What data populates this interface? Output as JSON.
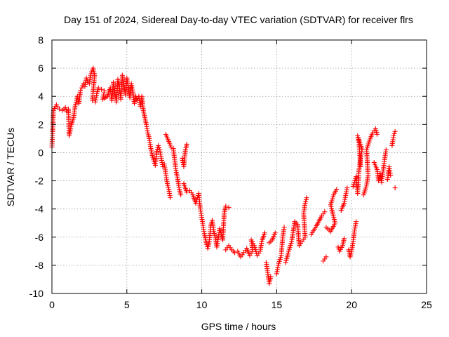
{
  "chart_data": {
    "type": "scatter",
    "title": "Day 151 of 2024, Sidereal Day-to-day VTEC variation (SDTVAR) for receiver flrs",
    "xlabel": "GPS time / hours",
    "ylabel": "SDTVAR / TECUs",
    "xlim": [
      0,
      25
    ],
    "ylim": [
      -10,
      8
    ],
    "xticks": [
      0,
      5,
      10,
      15,
      20,
      25
    ],
    "yticks": [
      -10,
      -8,
      -6,
      -4,
      -2,
      0,
      2,
      4,
      6,
      8
    ],
    "grid": true,
    "marker": "plus",
    "color": "#ff0000",
    "series": [
      {
        "points": [
          [
            0.0,
            0.4
          ],
          [
            0.05,
            1.5
          ],
          [
            0.1,
            3.0
          ],
          [
            0.3,
            3.4
          ],
          [
            0.5,
            3.1
          ],
          [
            0.7,
            3.0
          ],
          [
            0.9,
            3.2
          ],
          [
            1.0,
            2.9
          ],
          [
            1.1,
            3.1
          ],
          [
            1.15,
            1.2
          ],
          [
            1.3,
            2.0
          ],
          [
            1.45,
            2.5
          ],
          [
            1.55,
            3.3
          ],
          [
            1.7,
            4.0
          ],
          [
            1.8,
            3.5
          ],
          [
            1.9,
            4.4
          ],
          [
            2.0,
            4.6
          ],
          [
            2.1,
            4.9
          ],
          [
            2.2,
            4.7
          ],
          [
            2.3,
            5.3
          ],
          [
            2.4,
            5.0
          ],
          [
            2.5,
            4.9
          ],
          [
            2.6,
            5.6
          ],
          [
            2.75,
            6.0
          ],
          [
            2.85,
            5.5
          ],
          [
            2.7,
            3.7
          ],
          [
            2.9,
            3.6
          ],
          [
            3.0,
            4.2
          ],
          [
            3.1,
            4.6
          ],
          [
            3.3,
            4.5
          ],
          [
            3.5,
            4.4
          ],
          [
            3.4,
            3.8
          ],
          [
            3.7,
            4.0
          ],
          [
            3.9,
            4.6
          ],
          [
            4.0,
            3.7
          ],
          [
            4.1,
            5.0
          ],
          [
            4.2,
            4.3
          ],
          [
            4.3,
            3.6
          ],
          [
            4.4,
            5.2
          ],
          [
            4.5,
            4.7
          ],
          [
            4.6,
            3.8
          ],
          [
            4.7,
            5.5
          ],
          [
            4.8,
            4.8
          ],
          [
            4.9,
            4.1
          ],
          [
            5.0,
            5.3
          ],
          [
            5.1,
            4.6
          ],
          [
            5.2,
            3.9
          ],
          [
            5.3,
            4.9
          ],
          [
            5.4,
            4.3
          ],
          [
            5.5,
            3.5
          ],
          [
            5.6,
            4.0
          ],
          [
            5.7,
            3.7
          ],
          [
            5.8,
            4.0
          ],
          [
            5.9,
            3.3
          ],
          [
            6.0,
            4.0
          ],
          [
            6.1,
            3.0
          ],
          [
            6.2,
            2.5
          ],
          [
            6.3,
            2.0
          ],
          [
            6.4,
            1.4
          ],
          [
            6.5,
            1.0
          ],
          [
            6.6,
            0.3
          ],
          [
            6.7,
            -0.2
          ],
          [
            6.8,
            -0.6
          ],
          [
            6.9,
            -0.9
          ],
          [
            7.0,
            0.1
          ],
          [
            7.1,
            0.5
          ],
          [
            7.2,
            0.2
          ],
          [
            7.3,
            -0.4
          ],
          [
            7.4,
            -1.0
          ],
          [
            7.5,
            -0.8
          ],
          [
            7.6,
            -1.5
          ],
          [
            7.7,
            -2.2
          ],
          [
            7.8,
            -2.6
          ],
          [
            7.9,
            -3.2
          ],
          [
            7.6,
            1.3
          ],
          [
            7.8,
            0.8
          ],
          [
            7.95,
            0.4
          ],
          [
            8.1,
            0.3
          ],
          [
            8.2,
            -0.6
          ],
          [
            8.3,
            -1.4
          ],
          [
            8.4,
            -1.9
          ],
          [
            8.5,
            -2.6
          ],
          [
            8.6,
            -3.0
          ],
          [
            8.7,
            -0.4
          ],
          [
            8.8,
            -1.0
          ],
          [
            8.9,
            0.1
          ],
          [
            9.0,
            0.6
          ],
          [
            8.8,
            -2.2
          ],
          [
            9.0,
            -2.8
          ],
          [
            9.2,
            -2.7
          ],
          [
            9.4,
            -3.0
          ],
          [
            9.6,
            -3.6
          ],
          [
            9.8,
            -2.9
          ],
          [
            9.9,
            -4.0
          ],
          [
            10.0,
            -4.6
          ],
          [
            10.1,
            -5.3
          ],
          [
            10.2,
            -5.9
          ],
          [
            10.3,
            -6.4
          ],
          [
            10.4,
            -6.8
          ],
          [
            10.5,
            -6.3
          ],
          [
            10.6,
            -5.2
          ],
          [
            10.7,
            -4.8
          ],
          [
            10.8,
            -5.6
          ],
          [
            10.9,
            -6.0
          ],
          [
            11.0,
            -6.7
          ],
          [
            11.2,
            -5.4
          ],
          [
            11.4,
            -6.2
          ],
          [
            11.5,
            -4.3
          ],
          [
            11.6,
            -3.8
          ],
          [
            11.8,
            -3.9
          ],
          [
            11.6,
            -6.9
          ],
          [
            11.8,
            -6.6
          ],
          [
            12.0,
            -6.9
          ],
          [
            12.2,
            -7.1
          ],
          [
            12.4,
            -7.0
          ],
          [
            12.6,
            -7.4
          ],
          [
            12.8,
            -7.1
          ],
          [
            13.0,
            -6.8
          ],
          [
            13.2,
            -7.3
          ],
          [
            13.4,
            -7.0
          ],
          [
            13.3,
            -6.2
          ],
          [
            13.5,
            -6.6
          ],
          [
            13.7,
            -7.3
          ],
          [
            13.9,
            -7.0
          ],
          [
            14.0,
            -6.3
          ],
          [
            14.2,
            -5.7
          ],
          [
            14.3,
            -7.8
          ],
          [
            14.4,
            -8.5
          ],
          [
            14.5,
            -9.3
          ],
          [
            14.6,
            -8.8
          ],
          [
            14.5,
            -6.4
          ],
          [
            14.7,
            -6.2
          ],
          [
            14.9,
            -5.7
          ],
          [
            15.0,
            -8.6
          ],
          [
            15.1,
            -8.0
          ],
          [
            15.3,
            -7.3
          ],
          [
            15.4,
            -6.0
          ],
          [
            15.5,
            -5.3
          ],
          [
            15.6,
            -7.8
          ],
          [
            15.8,
            -7.0
          ],
          [
            16.0,
            -6.3
          ],
          [
            16.2,
            -4.9
          ],
          [
            16.4,
            -5.1
          ],
          [
            16.5,
            -6.6
          ],
          [
            16.7,
            -6.3
          ],
          [
            16.9,
            -6.0
          ],
          [
            16.8,
            -4.3
          ],
          [
            16.9,
            -3.6
          ],
          [
            17.0,
            -3.2
          ],
          [
            17.3,
            -5.8
          ],
          [
            17.6,
            -5.3
          ],
          [
            18.0,
            -4.5
          ],
          [
            18.2,
            -4.2
          ],
          [
            18.1,
            -7.7
          ],
          [
            18.3,
            -7.4
          ],
          [
            18.3,
            -5.3
          ],
          [
            18.6,
            -5.6
          ],
          [
            18.9,
            -5.0
          ],
          [
            18.6,
            -3.7
          ],
          [
            18.8,
            -3.0
          ],
          [
            19.0,
            -2.6
          ],
          [
            19.1,
            -6.7
          ],
          [
            19.2,
            -7.0
          ],
          [
            19.4,
            -6.6
          ],
          [
            19.5,
            -6.1
          ],
          [
            19.3,
            -4.1
          ],
          [
            19.5,
            -3.6
          ],
          [
            19.7,
            -2.5
          ],
          [
            19.8,
            -6.9
          ],
          [
            19.9,
            -7.4
          ],
          [
            20.0,
            -7.0
          ],
          [
            20.1,
            -6.3
          ],
          [
            20.2,
            -5.5
          ],
          [
            20.3,
            -4.9
          ],
          [
            20.1,
            -2.4
          ],
          [
            20.3,
            -1.7
          ],
          [
            20.4,
            -2.9
          ],
          [
            20.5,
            -1.1
          ],
          [
            20.6,
            -0.4
          ],
          [
            20.7,
            0.2
          ],
          [
            20.4,
            1.2
          ],
          [
            20.5,
            0.6
          ],
          [
            20.6,
            -1.0
          ],
          [
            20.8,
            -3.0
          ],
          [
            21.0,
            -2.3
          ],
          [
            21.1,
            -1.6
          ],
          [
            21.0,
            0.2
          ],
          [
            21.2,
            0.9
          ],
          [
            21.4,
            1.4
          ],
          [
            21.6,
            1.7
          ],
          [
            21.7,
            1.3
          ],
          [
            21.5,
            -0.7
          ],
          [
            21.7,
            -1.2
          ],
          [
            21.8,
            -2.0
          ],
          [
            21.9,
            -1.5
          ],
          [
            22.0,
            -2.1
          ],
          [
            22.1,
            -1.3
          ],
          [
            22.2,
            -0.5
          ],
          [
            22.3,
            0.2
          ],
          [
            22.4,
            -1.9
          ],
          [
            22.5,
            -1.0
          ],
          [
            22.6,
            -1.6
          ],
          [
            22.7,
            0.5
          ],
          [
            22.8,
            1.2
          ],
          [
            22.9,
            1.5
          ],
          [
            22.9,
            -2.5
          ]
        ]
      }
    ]
  }
}
